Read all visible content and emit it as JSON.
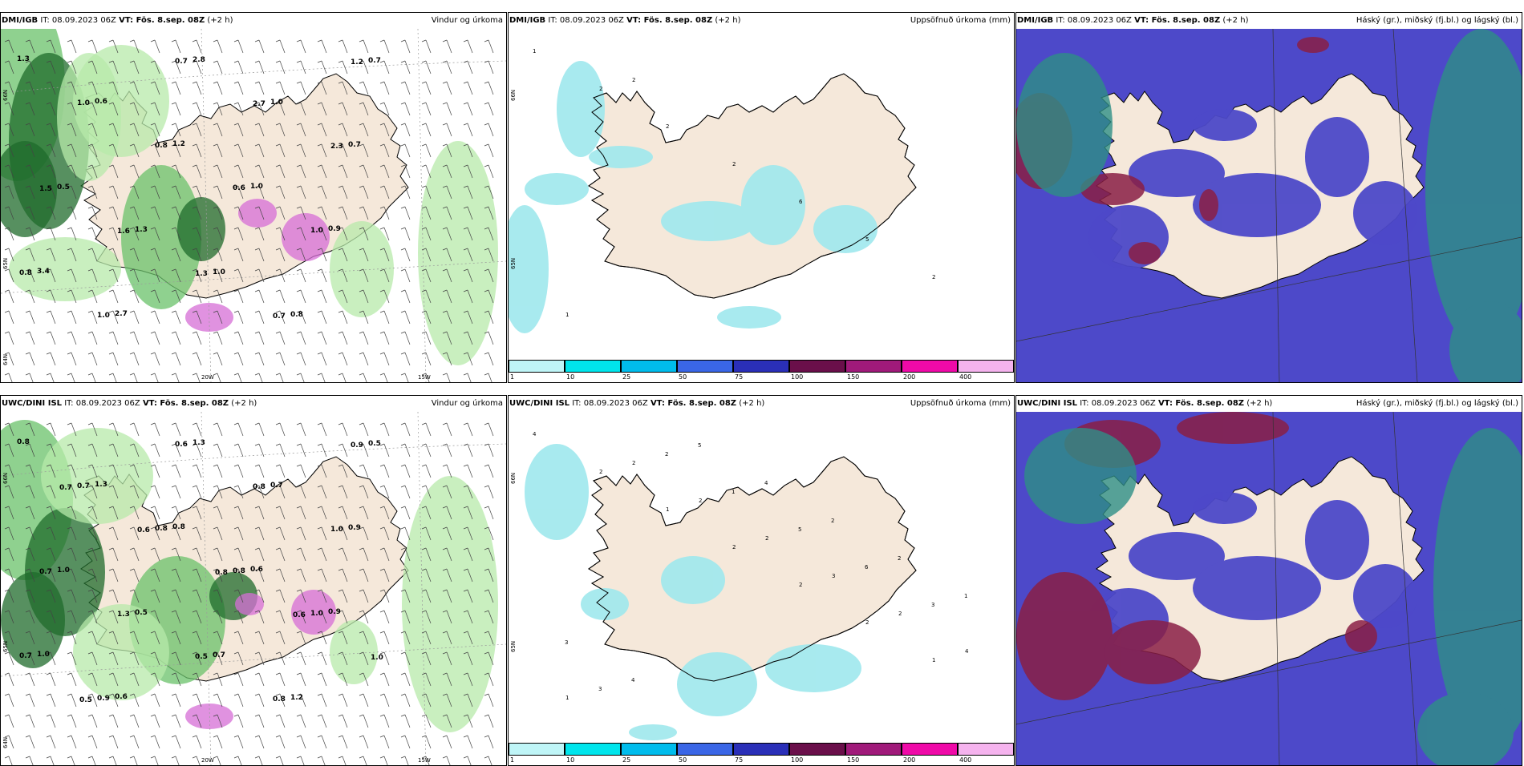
{
  "colors": {
    "land": "#f5e8da",
    "sea": "#ffffff",
    "precip": "#9fe8ed",
    "wind_light": "#b7e9a9",
    "wind_mid": "#6ac16a",
    "wind_dark": "#1f6b2b",
    "mag": "#d66ed6",
    "cloud_blue": "#4d49c9",
    "cloud_red": "#8a1f45",
    "cloud_teal": "#2e8f86"
  },
  "panels": [
    {
      "source": "DMI/IGB",
      "it": "IT: 08.09.2023 06Z",
      "vt": "VT: Fös. 8.sep. 08Z",
      "lead": "(+2 h)",
      "product": "Vindur og úrkoma"
    },
    {
      "source": "DMI/IGB",
      "it": "IT: 08.09.2023 06Z",
      "vt": "VT: Fös. 8.sep. 08Z",
      "lead": "(+2 h)",
      "product": "Uppsöfnuð úrkoma (mm)"
    },
    {
      "source": "DMI/IGB",
      "it": "IT: 08.09.2023 06Z",
      "vt": "VT: Fös. 8.sep. 08Z",
      "lead": "(+2 h)",
      "product": "Háský (gr.), miðský (fj.bl.) og lágský (bl.)"
    },
    {
      "source": "UWC/DINI ISL",
      "it": "IT: 08.09.2023 06Z",
      "vt": "VT: Fös. 8.sep. 08Z",
      "lead": "(+2 h)",
      "product": "Vindur og úrkoma"
    },
    {
      "source": "UWC/DINI ISL",
      "it": "IT: 08.09.2023 06Z",
      "vt": "VT: Fös. 8.sep. 08Z",
      "lead": "(+2 h)",
      "product": "Uppsöfnuð úrkoma (mm)"
    },
    {
      "source": "UWC/DINI ISL",
      "it": "IT: 08.09.2023 06Z",
      "vt": "VT: Fös. 8.sep. 08Z",
      "lead": "(+2 h)",
      "product": "Háský (gr.), miðský (fj.bl.) og lágský (bl.)"
    }
  ],
  "lon_labels": {
    "w20": "20W",
    "w15": "15W"
  },
  "lat_labels": {
    "n65": "65N",
    "n64": "64N",
    "n66": "66N"
  },
  "colorbar": {
    "ticks": [
      "1",
      "10",
      "25",
      "50",
      "75",
      "100",
      "150",
      "200",
      "400"
    ],
    "colors": [
      "#bff5f7",
      "#00e5ec",
      "#00bcec",
      "#3a66e6",
      "#2a2fb8",
      "#6a0f4a",
      "#a01a7a",
      "#ef0aa8",
      "#f5b3ee"
    ]
  },
  "wind_labels_dmi": [
    "1.3",
    "0.6",
    "1.2",
    "1.0",
    "0.9",
    "3.4",
    "2.7",
    "2.8",
    "1.0",
    "0.7",
    "0.5",
    "1.3",
    "1.0",
    "0.8",
    "0.7",
    "1.0",
    "0.8",
    "0.6",
    "1.0",
    "0.8",
    "1.0",
    "0.7",
    "2.7",
    "2.3",
    "1.5",
    "1.6",
    "1.3",
    "0.7",
    "1.2"
  ],
  "wind_labels_dini": [
    "0.8",
    "1.3",
    "0.8",
    "0.6",
    "0.9",
    "1.0",
    "0.6",
    "1.3",
    "0.7",
    "0.9",
    "1.0",
    "0.5",
    "0.7",
    "1.2",
    "0.5",
    "0.7",
    "0.8",
    "0.8",
    "1.0",
    "0.7",
    "0.9",
    "0.6",
    "0.8",
    "1.0",
    "0.7",
    "1.3",
    "0.5",
    "0.8",
    "0.9",
    "0.7",
    "0.6",
    "0.8",
    "0.6",
    "1.0",
    "0.5"
  ],
  "precip_labels_dmi": [
    "1",
    "2",
    "2",
    "2",
    "6",
    "5",
    "2",
    "1",
    "2"
  ],
  "precip_labels_dini": [
    "4",
    "2",
    "1",
    "2",
    "2",
    "2",
    "1",
    "1",
    "2",
    "2",
    "2",
    "3",
    "2",
    "4",
    "3",
    "2",
    "1",
    "5",
    "6",
    "3",
    "3",
    "4",
    "5",
    "4",
    "2",
    "2",
    "1"
  ]
}
